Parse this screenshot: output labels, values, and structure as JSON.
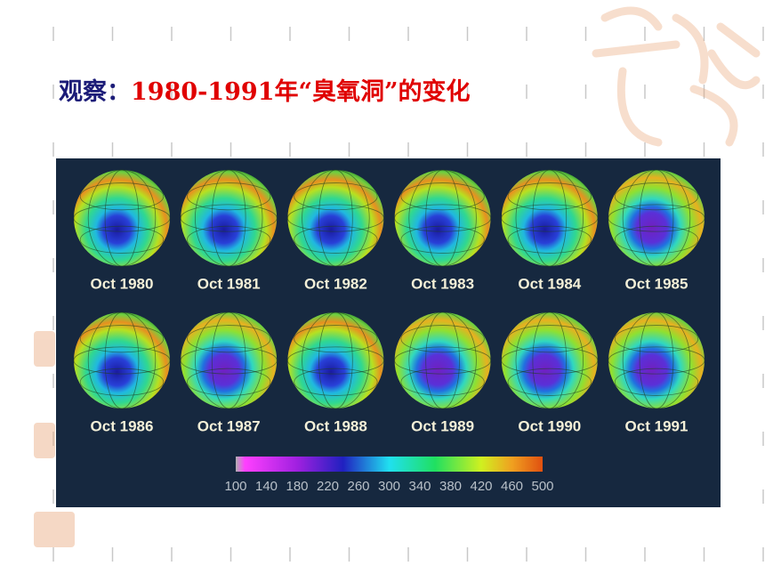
{
  "title": {
    "lead": "观察：",
    "text": "1980-1991年“臭氧洞”的变化"
  },
  "globes": {
    "labels": [
      "Oct 1980",
      "Oct 1981",
      "Oct 1982",
      "Oct 1983",
      "Oct 1984",
      "Oct 1985",
      "Oct 1986",
      "Oct 1987",
      "Oct 1988",
      "Oct 1989",
      "Oct 1990",
      "Oct 1991"
    ]
  },
  "colorbar": {
    "ticks": [
      100,
      140,
      180,
      220,
      260,
      300,
      340,
      380,
      420,
      460,
      500
    ]
  }
}
